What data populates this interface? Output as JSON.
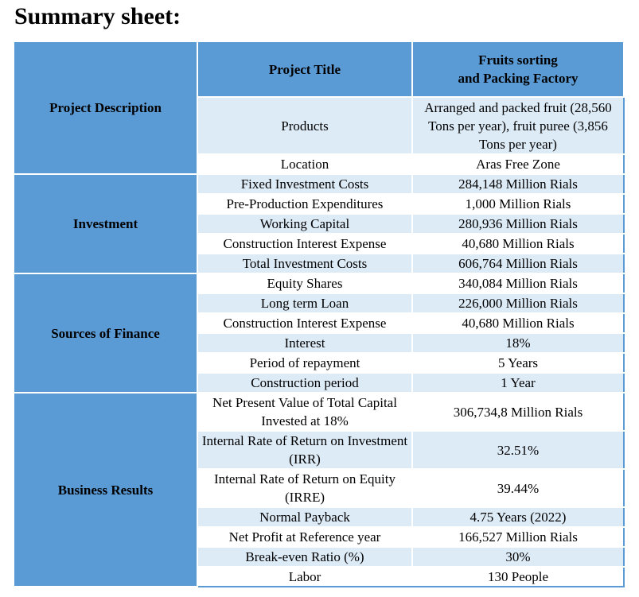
{
  "title": "Summary sheet:",
  "header": {
    "label": "Project Title",
    "value": "Fruits sorting\nand Packing Factory"
  },
  "sections": [
    {
      "name": "Project Description",
      "rows": [
        {
          "label": "Products",
          "value": "Arranged and packed fruit (28,560 Tons per year), fruit puree (3,856 Tons per year)"
        },
        {
          "label": "Location",
          "value": "Aras Free Zone"
        }
      ]
    },
    {
      "name": "Investment",
      "rows": [
        {
          "label": "Fixed Investment Costs",
          "value": "284,148 Million Rials"
        },
        {
          "label": "Pre-Production Expenditures",
          "value": "1,000 Million Rials"
        },
        {
          "label": "Working Capital",
          "value": "280,936 Million Rials"
        },
        {
          "label": "Construction Interest Expense",
          "value": "40,680 Million Rials"
        },
        {
          "label": "Total Investment Costs",
          "value": "606,764 Million Rials"
        }
      ]
    },
    {
      "name": "Sources of Finance",
      "rows": [
        {
          "label": "Equity Shares",
          "value": "340,084 Million Rials"
        },
        {
          "label": "Long term Loan",
          "value": "226,000 Million Rials"
        },
        {
          "label": "Construction Interest Expense",
          "value": "40,680 Million Rials"
        },
        {
          "label": "Interest",
          "value": "18%"
        },
        {
          "label": "Period of repayment",
          "value": "5 Years"
        },
        {
          "label": "Construction period",
          "value": "1 Year"
        }
      ]
    },
    {
      "name": "Business Results",
      "rows": [
        {
          "label": "Net Present Value of Total Capital Invested at 18%",
          "value": "306,734,8 Million Rials"
        },
        {
          "label": "Internal Rate of Return on Investment (IRR)",
          "value": "32.51%"
        },
        {
          "label": "Internal Rate of Return on Equity (IRRE)",
          "value": "39.44%"
        },
        {
          "label": "Normal Payback",
          "value": "4.75 Years (2022)"
        },
        {
          "label": "Net Profit at Reference year",
          "value": "166,527 Million Rials"
        },
        {
          "label": "Break-even Ratio (%)",
          "value": "30%"
        },
        {
          "label": "Labor",
          "value": "130 People"
        }
      ]
    }
  ],
  "colors": {
    "header_blue": "#5b9bd5",
    "row_light": "#ddebf7",
    "row_white": "#ffffff"
  }
}
